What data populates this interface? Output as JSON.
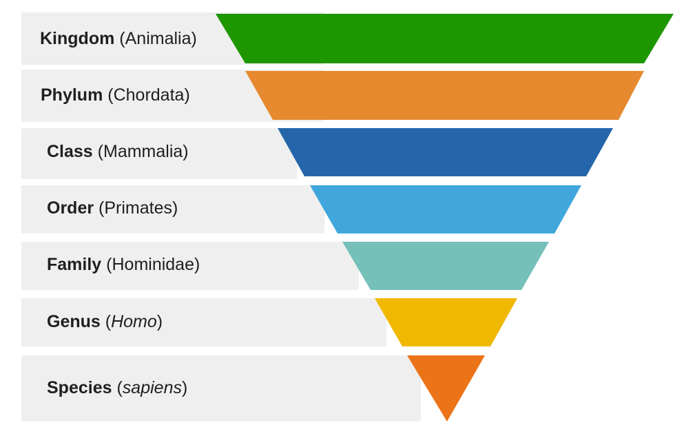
{
  "levels": [
    {
      "rank": "Kingdom",
      "taxon": "Animalia",
      "italic": false,
      "color": "#1e9600"
    },
    {
      "rank": "Phylum",
      "taxon": "Chordata",
      "italic": false,
      "color": "#e6892f"
    },
    {
      "rank": "Class",
      "taxon": "Mammalia",
      "italic": false,
      "color": "#2566aa"
    },
    {
      "rank": "Order",
      "taxon": "Primates",
      "italic": false,
      "color": "#40a6dc"
    },
    {
      "rank": "Family",
      "taxon": "Hominidae",
      "italic": false,
      "color": "#76c0ba"
    },
    {
      "rank": "Genus",
      "taxon": "Homo",
      "italic": true,
      "color": "#f0b800"
    },
    {
      "rank": "Species",
      "taxon": "sapiens",
      "italic": true,
      "color": "#eb7318"
    }
  ]
}
